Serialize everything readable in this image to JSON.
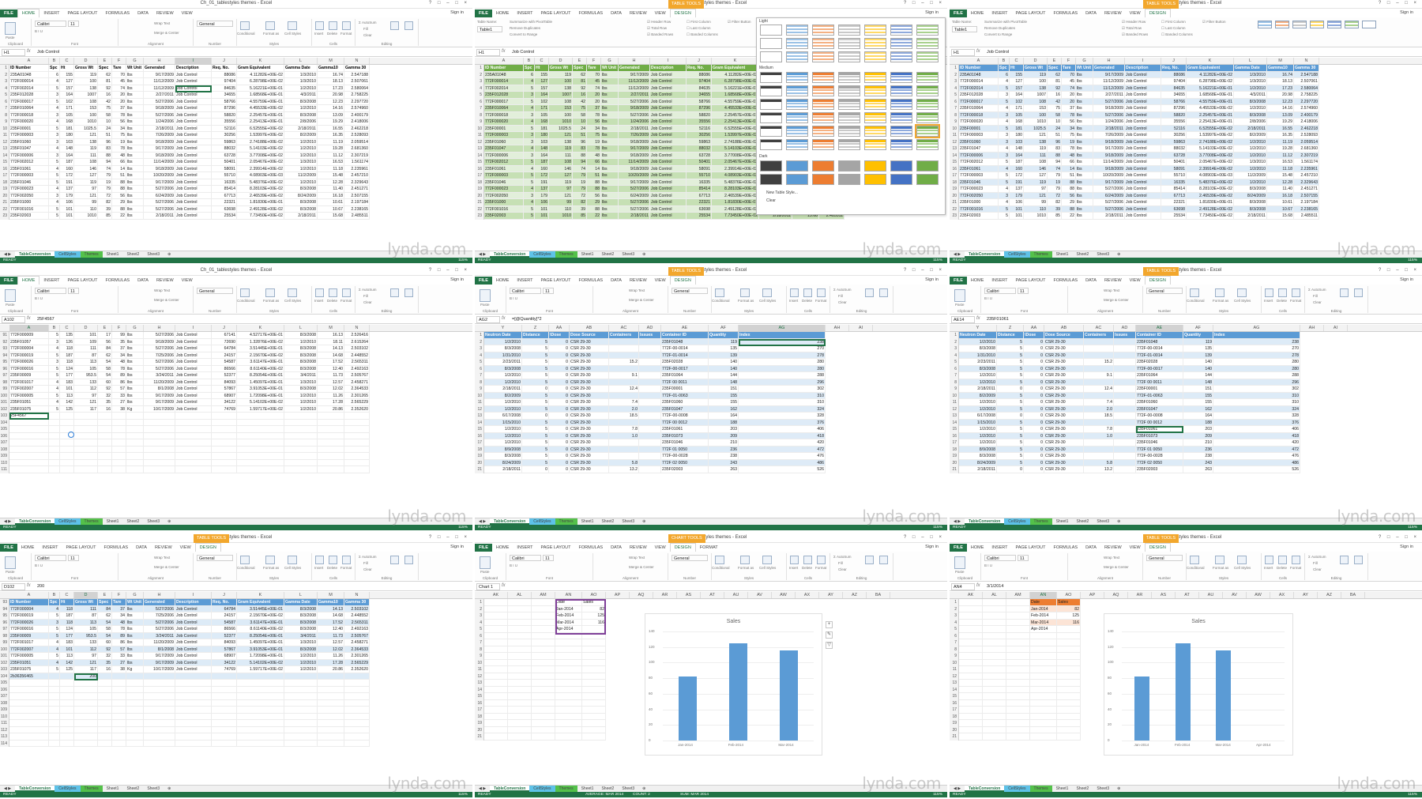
{
  "frame": {
    "width": 1800,
    "height": 1011
  },
  "common": {
    "titles": [
      "Ch_01_tablestyles themes - Excel",
      "Ch_01_tablestyles themes - Excel",
      "Ch_01_tablestyles themes - Excel",
      "Ch_01_tablestyles themes - Excel",
      "Ch_01_tablestyles themes - Excel",
      "Ch_01_tablestyles themes - Excel",
      "Ch_01_tablestyles themes - Excel",
      "Ch_01_tablestyles themes - Excel",
      "Ch_01_tablestyles themes - Excel"
    ],
    "ribbon_tabs": [
      "FILE",
      "HOME",
      "INSERT",
      "PAGE LAYOUT",
      "FORMULAS",
      "DATA",
      "REVIEW",
      "VIEW"
    ],
    "sign_in": "Sign in",
    "sheet_tabs": [
      "TableConversion",
      "CellStyles",
      "Themes",
      "Sheet1",
      "Sheet2",
      "Sheet3"
    ],
    "status_left": "READY",
    "zoom": "115%",
    "watermark": "lynda.com",
    "ribbon_groups": [
      "Clipboard",
      "Font",
      "Alignment",
      "Number",
      "Styles",
      "Cells",
      "Editing"
    ],
    "font_name": "Calibri",
    "font_size": "11",
    "number_format": "General",
    "wrap_text": "Wrap Text",
    "merge_center": "Merge & Center",
    "autosum": "AutoSum",
    "fill": "Fill",
    "clear": "Clear",
    "sort_filter": "Sort & Filter",
    "find_select": "Find & Select",
    "cond_format": "Conditional Formatting",
    "format_table": "Format as Table",
    "cell_styles": "Cell Styles",
    "insert_btn": "Insert",
    "delete_btn": "Delete",
    "format_btn": "Format",
    "paste": "Paste",
    "table_tools": "TABLE TOOLS",
    "chart_tools": "CHART TOOLS",
    "design": "DESIGN",
    "format": "FORMAT"
  },
  "data_table": {
    "columns": [
      "ID Number",
      "Spc",
      "Ht",
      "Gross Wt",
      "Spec",
      "Tare",
      "Wt Unit",
      "Generated",
      "Description",
      "Req. No.",
      "Gram Equivalent",
      "Gamma Date",
      "Gamma10",
      "Gamma 30"
    ],
    "col_letters": [
      "A",
      "B",
      "C",
      "D",
      "E",
      "F",
      "G",
      "H",
      "I",
      "J",
      "K",
      "L",
      "M",
      "N"
    ],
    "rows": [
      [
        "235A01048",
        "6",
        "155",
        "119",
        "62",
        "70",
        "lbs",
        "9/17/2009",
        "Job Control",
        "88086",
        "4.11282E+00E-02",
        "1/3/2010",
        "16.74",
        "2.547188"
      ],
      [
        "772F000014",
        "4",
        "127",
        "100",
        "81",
        "45",
        "lbs",
        "11/12/2009",
        "Job Control",
        "97404",
        "6.28798E+00E-02",
        "1/3/2010",
        "18.13",
        "2.507061"
      ],
      [
        "772F002014",
        "5",
        "157",
        "138",
        "92",
        "74",
        "lbs",
        "11/12/2009",
        "Job Control",
        "84635",
        "5.16221E+00E-01",
        "1/2/2010",
        "17.23",
        "2.580064"
      ],
      [
        "235F012028",
        "3",
        "164",
        "1007",
        "16",
        "20",
        "lbs",
        "2/27/2011",
        "Job Control",
        "34655",
        "1.68568E+00E-01",
        "4/3/2011",
        "20.98",
        "2.758225"
      ],
      [
        "772F000017",
        "5",
        "102",
        "108",
        "42",
        "20",
        "lbs",
        "5/27/2006",
        "Job Control",
        "58766",
        "4.55759E+00E-01",
        "8/3/2008",
        "12.23",
        "2.297720"
      ],
      [
        "235F010064",
        "4",
        "171",
        "153",
        "75",
        "37",
        "lbs",
        "9/18/2009",
        "Job Control",
        "87296",
        "4.45533E+00E-02",
        "1/2/2010",
        "14.16",
        "2.574960"
      ],
      [
        "772F000018",
        "3",
        "105",
        "100",
        "58",
        "78",
        "lbs",
        "5/27/2006",
        "Job Control",
        "58820",
        "2.25457E+00E-01",
        "8/3/2008",
        "13.09",
        "2.400179"
      ],
      [
        "772F000020",
        "4",
        "168",
        "1010",
        "10",
        "56",
        "lbs",
        "1/24/2006",
        "Job Control",
        "35556",
        "2.25413E+00E-01",
        "2/8/2006",
        "19.29",
        "2.418006"
      ],
      [
        "235F00001",
        "5",
        "181",
        "1025.5",
        "24",
        "34",
        "lbs",
        "2/18/2011",
        "Job Control",
        "52116",
        "6.52555E+00E-02",
        "2/18/2011",
        "16.55",
        "2.462218"
      ],
      [
        "772F000003",
        "3",
        "180",
        "121",
        "51",
        "75",
        "lbs",
        "7/26/2009",
        "Job Control",
        "30256",
        "1.53997E+00E-02",
        "8/2/2009",
        "16.35",
        "2.528093"
      ],
      [
        "235F01060",
        "3",
        "103",
        "138",
        "96",
        "19",
        "lbs",
        "9/18/2009",
        "Job Control",
        "59863",
        "2.74188E+00E-02",
        "1/2/2010",
        "11.19",
        "2.059514"
      ],
      [
        "235F01047",
        "4",
        "148",
        "119",
        "83",
        "78",
        "lbs",
        "9/17/2009",
        "Job Control",
        "88032",
        "5.14103E+00E-02",
        "1/2/2010",
        "19.28",
        "2.681360"
      ],
      [
        "772F000006",
        "3",
        "164",
        "111",
        "88",
        "48",
        "lbs",
        "9/18/2009",
        "Job Control",
        "63728",
        "3.77008E+00E-02",
        "1/2/2010",
        "11.12",
        "2.307219"
      ],
      [
        "772F002012",
        "5",
        "187",
        "108",
        "94",
        "66",
        "lbs",
        "11/14/2009",
        "Job Control",
        "50401",
        "2.05467E+00E-02",
        "1/3/2010",
        "16.53",
        "1.561174"
      ],
      [
        "235F01061",
        "4",
        "160",
        "146",
        "74",
        "14",
        "lbs",
        "9/18/2009",
        "Job Control",
        "58091",
        "2.39914E+00E-02",
        "1/2/2010",
        "11.18",
        "2.235961"
      ],
      [
        "772F000003",
        "5",
        "172",
        "127",
        "79",
        "51",
        "lbs",
        "10/20/2009",
        "Job Control",
        "55710",
        "4.08903E+00E-03",
        "11/2/2009",
        "15.48",
        "2.457210"
      ],
      [
        "235F01046",
        "5",
        "191",
        "119",
        "19",
        "88",
        "lbs",
        "9/17/2009",
        "Job Control",
        "16335",
        "5.48376E+00E-02",
        "1/2/2010",
        "12.28",
        "2.329643"
      ],
      [
        "772F000023",
        "4",
        "137",
        "97",
        "79",
        "88",
        "lbs",
        "5/27/2006",
        "Job Control",
        "85414",
        "8.28103E+00E-02",
        "8/3/2008",
        "11.40",
        "2.451271"
      ],
      [
        "772F002050",
        "3",
        "179",
        "121",
        "72",
        "56",
        "lbs",
        "6/24/2009",
        "Job Control",
        "67713",
        "2.46539E+00E-02",
        "8/24/2009",
        "16.18",
        "2.507155"
      ],
      [
        "235F01000",
        "4",
        "106",
        "99",
        "82",
        "29",
        "lbs",
        "5/27/2006",
        "Job Control",
        "22321",
        "1.81830E+00E-01",
        "8/3/2008",
        "10.61",
        "2.197184"
      ],
      [
        "772F001016",
        "5",
        "101",
        "110",
        "39",
        "88",
        "lbs",
        "5/27/2006",
        "Job Control",
        "63698",
        "2.49128E+00E-02",
        "8/3/2008",
        "10.67",
        "2.238165"
      ],
      [
        "235F02003",
        "5",
        "101",
        "1010",
        "85",
        "22",
        "lbs",
        "2/18/2011",
        "Job Control",
        "25534",
        "7.73450E+00E-02",
        "2/18/2011",
        "15.68",
        "2.485511"
      ]
    ]
  },
  "bottom_rows": {
    "start": 91,
    "rows": [
      [
        "772F000009",
        "5",
        "135",
        "101",
        "17",
        "99",
        "lbs",
        "5/27/2006",
        "Job Control",
        "67141",
        "4.52717E+00E-01",
        "8/3/2008",
        "16.13",
        "2.526416"
      ],
      [
        "235F01057",
        "3",
        "126",
        "109",
        "56",
        "35",
        "lbs",
        "9/18/2009",
        "Job Control",
        "72690",
        "1.32876E+00E-02",
        "1/2/2010",
        "18.11",
        "2.615264"
      ],
      [
        "772F000004",
        "4",
        "118",
        "111",
        "84",
        "37",
        "lbs",
        "5/27/2006",
        "Job Control",
        "64784",
        "3.51445E+00E-01",
        "8/3/2008",
        "14.13",
        "2.503102"
      ],
      [
        "772F000019",
        "5",
        "187",
        "87",
        "62",
        "34",
        "lbs",
        "7/25/2006",
        "Job Control",
        "24157",
        "2.15670E+00E-02",
        "8/3/2008",
        "14.68",
        "2.448552"
      ],
      [
        "772F000026",
        "3",
        "118",
        "113",
        "54",
        "48",
        "lbs",
        "5/27/2006",
        "Job Control",
        "54587",
        "3.61147E+00E-01",
        "8/3/2008",
        "17.52",
        "2.565311"
      ],
      [
        "772F000016",
        "5",
        "124",
        "105",
        "58",
        "78",
        "lbs",
        "5/27/2006",
        "Job Control",
        "86566",
        "8.61140E+00E-02",
        "8/3/2008",
        "12.40",
        "2.492163"
      ],
      [
        "235F00009",
        "5",
        "177",
        "953.5",
        "54",
        "89",
        "lbs",
        "3/24/2011",
        "Job Control",
        "52377",
        "8.25054E+00E-01",
        "3/4/2011",
        "11.73",
        "2.505767"
      ],
      [
        "772F001017",
        "4",
        "183",
        "133",
        "60",
        "86",
        "lbs",
        "11/20/2009",
        "Job Control",
        "84093",
        "1.45097E+00E-01",
        "1/3/2010",
        "12.57",
        "2.458271"
      ],
      [
        "772F002007",
        "4",
        "101",
        "112",
        "92",
        "57",
        "lbs",
        "8/1/2008",
        "Job Control",
        "57867",
        "3.91053E+00E-01",
        "8/3/2008",
        "12.02",
        "2.364533"
      ],
      [
        "772F000005",
        "5",
        "113",
        "97",
        "32",
        "33",
        "lbs",
        "9/17/2009",
        "Job Control",
        "68907",
        "1.72098E+00E-01",
        "1/2/2010",
        "11.26",
        "2.301265"
      ],
      [
        "235F01051",
        "4",
        "142",
        "121",
        "35",
        "27",
        "lbs",
        "9/17/2009",
        "Job Control",
        "34122",
        "5.14102E+00E-02",
        "1/2/2010",
        "17.28",
        "2.565229"
      ],
      [
        "235F01075",
        "5",
        "125",
        "117",
        "16",
        "38",
        "Kg",
        "10/17/2009",
        "Job Control",
        "74769",
        "1.59717E+00E-02",
        "1/2/2010",
        "20.86",
        "2.352620"
      ]
    ],
    "entry_value": "25F4567",
    "entry_value_b": "2b36356465",
    "entry_value_c": "200"
  },
  "neutron_table": {
    "columns": [
      "Neutron Date",
      "Distance",
      "\\Dose",
      "Dose Source",
      "Containers",
      "Issues",
      "Container ID",
      "Quantity",
      "Index"
    ],
    "col_letters": [
      "Y",
      "Z",
      "AA",
      "AB",
      "AC",
      "AD",
      "AE",
      "AF",
      "AG"
    ],
    "rows": [
      [
        "1/2/2010",
        "5",
        "0",
        "CSR 29-30",
        "",
        "",
        "235F01048",
        "119",
        "238"
      ],
      [
        "8/3/2008",
        "5",
        "0",
        "CSR 29-30",
        "",
        "",
        "772F-00-0014",
        "135",
        "270"
      ],
      [
        "1/31/2010",
        "5",
        "0",
        "CSR 29-30",
        "",
        "",
        "772F-01-0014",
        "139",
        "278"
      ],
      [
        "2/23/2011",
        "5",
        "0",
        "CSR 29-30",
        "15.2",
        "",
        "235F02028",
        "140",
        "280"
      ],
      [
        "8/3/2008",
        "5",
        "0",
        "CSR 29-30",
        "",
        "",
        "772F-00-0017",
        "140",
        "280"
      ],
      [
        "1/2/2010",
        "5",
        "0",
        "CSR 29-30",
        "9.1",
        "",
        "235F01064",
        "144",
        "288"
      ],
      [
        "1/2/2010",
        "5",
        "0",
        "CSR 29-30",
        "",
        "",
        "772F 00 0011",
        "148",
        "296"
      ],
      [
        "2/18/2011",
        "0",
        "0",
        "CSR 29-30",
        "12.4",
        "",
        "235F00001",
        "151",
        "302"
      ],
      [
        "8/2/2009",
        "5",
        "0",
        "CSR 29-30",
        "",
        "",
        "772F-01-0063",
        "155",
        "310"
      ],
      [
        "1/2/2010",
        "5",
        "0",
        "CSR 29-30",
        "7.4",
        "",
        "235F01060",
        "155",
        "310"
      ],
      [
        "1/2/2010",
        "5",
        "0",
        "CSR 29-30",
        "2.0",
        "",
        "235F01047",
        "162",
        "324"
      ],
      [
        "6/17/2008",
        "0",
        "0",
        "CSR 29-30",
        "18.5",
        "",
        "772F-00-0008",
        "164",
        "328"
      ],
      [
        "1/15/2010",
        "5",
        "0",
        "CSR 29-30",
        "",
        "",
        "772F 00 0012",
        "188",
        "376"
      ],
      [
        "1/2/2010",
        "5",
        "0",
        "CSR 29-30",
        "7.8",
        "",
        "235F01061",
        "203",
        "406"
      ],
      [
        "1/2/2010",
        "5",
        "0",
        "CSR 29-30",
        "1.0",
        "",
        "235F01073",
        "209",
        "418"
      ],
      [
        "1/2/2010",
        "5",
        "0",
        "CSR 29-30",
        "",
        "",
        "235F01046",
        "210",
        "420"
      ],
      [
        "8/9/2008",
        "5",
        "0",
        "CSR 29-30",
        "",
        "",
        "772F 01 0050",
        "236",
        "472"
      ],
      [
        "8/3/2008",
        "5",
        "0",
        "CSR 29-30",
        "",
        "",
        "772F-00-0028",
        "238",
        "476"
      ],
      [
        "8/24/2009",
        "5",
        "0",
        "CSR 29-30",
        "5.8",
        "",
        "772F 02 0050",
        "243",
        "486"
      ],
      [
        "2/18/2011",
        "0",
        "0",
        "CSR 29-30",
        "13.2",
        "",
        "235F02003",
        "263",
        "526"
      ]
    ],
    "formula": "=[@Quantity]*2",
    "namebox": "AG2",
    "namebox_b": "AE14",
    "formula_b": "235F01061"
  },
  "sales": {
    "headers": [
      "Date",
      "Sales"
    ],
    "rows": [
      [
        "Jan-2014",
        "82"
      ],
      [
        "Feb-2014",
        "125"
      ],
      [
        "Mar-2014",
        "116"
      ],
      [
        "Apr-2014",
        ""
      ]
    ],
    "namebox": "Chart 1",
    "namebox_b": "AN4",
    "formula_b": "3/1/2014",
    "col_letters": [
      "AK",
      "AL",
      "AM",
      "AN",
      "AO",
      "AP",
      "AQ",
      "AR",
      "AS",
      "AT",
      "AU",
      "AV",
      "AW",
      "AX",
      "AY",
      "AZ",
      "BA"
    ]
  },
  "chart_data": {
    "type": "bar",
    "title": "Sales",
    "categories": [
      "Jan-2014",
      "Feb-2014",
      "Mar-2014"
    ],
    "values": [
      82,
      125,
      116
    ],
    "ylim": [
      0,
      140
    ],
    "yticks": [
      0,
      20,
      40,
      60,
      80,
      100,
      120,
      140
    ],
    "xlabel": "",
    "ylabel": "",
    "legend": "none",
    "grid": true
  },
  "chart_data_b": {
    "type": "bar",
    "title": "Sales",
    "categories": [
      "Jan-2014",
      "Feb-2014",
      "Mar-2014",
      "Apr-2014"
    ],
    "values": [
      82,
      125,
      116,
      0
    ]
  },
  "gallery": {
    "light": "Light",
    "medium": "Medium",
    "dark": "Dark",
    "new_style": "New Table Style...",
    "clear": "Clear"
  },
  "table_design": {
    "summarize": "Summarize with PivotTable",
    "remove_dup": "Remove Duplicates",
    "convert": "Convert to Range",
    "header_row": "Header Row",
    "total_row": "Total Row",
    "banded_rows": "Banded Rows",
    "first_col": "First Column",
    "last_col": "Last Column",
    "banded_cols": "Banded Columns",
    "filter_btn": "Filter Button",
    "table_name": "Table Name:",
    "table_name_val": "Table1"
  },
  "namebox_top": "H1",
  "formula_top": "Job Control",
  "namebox_mid": "A102",
  "formula_mid": "25F4567",
  "namebox_bot": "D102",
  "formula_bot": "200",
  "status_right": [
    "AVERAGE: MAR 2014",
    "COUNT: 2",
    "SUM: MAR 2014"
  ]
}
